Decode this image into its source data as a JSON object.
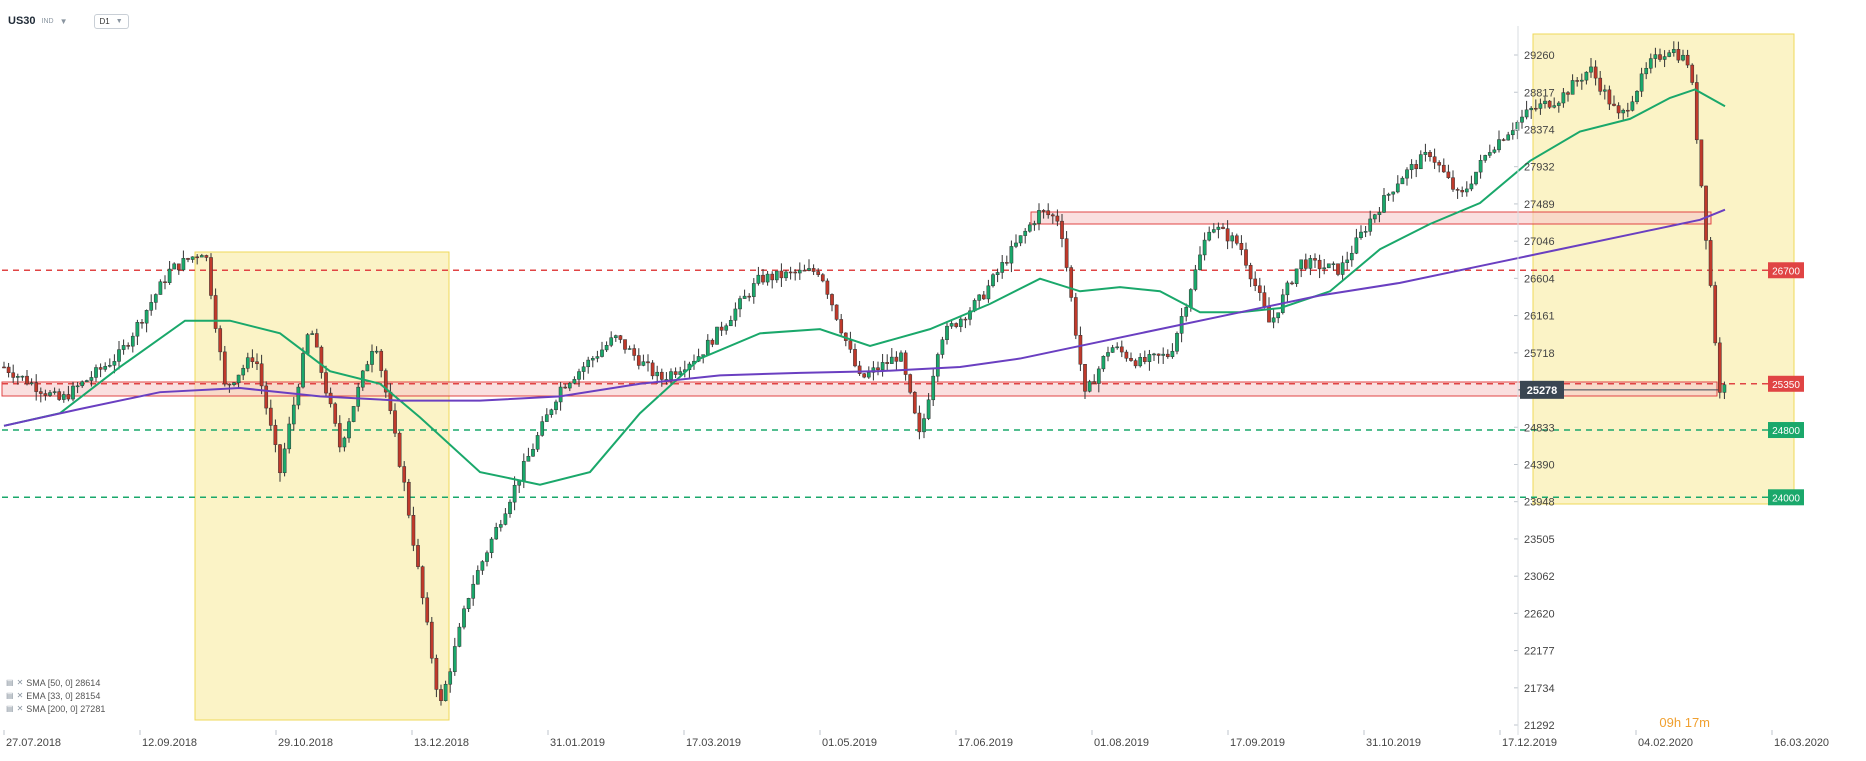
{
  "header": {
    "symbol": "US30",
    "market": "IND",
    "timeframe": "D1"
  },
  "timer": "09h 17m",
  "indicators": [
    {
      "label": "SMA [50, 0] 28614",
      "color": "#1aa86b"
    },
    {
      "label": "EMA [33, 0] 28154",
      "color": "#1aa86b"
    },
    {
      "label": "SMA [200, 0] 27281",
      "color": "#6a3fc1"
    }
  ],
  "chart_data": {
    "type": "candlestick",
    "x_tick_labels": [
      "27.07.2018",
      "12.09.2018",
      "29.10.2018",
      "13.12.2018",
      "31.01.2019",
      "17.03.2019",
      "01.05.2019",
      "17.06.2019",
      "01.08.2019",
      "17.09.2019",
      "31.10.2019",
      "17.12.2019",
      "04.02.2020",
      "16.03.2020"
    ],
    "y_tick_labels": [
      "29260",
      "28817",
      "28374",
      "27932",
      "27489",
      "27046",
      "26604",
      "26161",
      "25718",
      "24833",
      "24390",
      "23948",
      "23505",
      "23062",
      "22620",
      "22177",
      "21734",
      "21292"
    ],
    "ylim": [
      21292,
      29500
    ],
    "current_price": {
      "label": "25278",
      "value": 25278,
      "color": "#3a4652"
    },
    "levels": [
      {
        "label": "26700",
        "value": 26700,
        "style": "dashed",
        "color": "#e04444"
      },
      {
        "label": "25350",
        "value": 25350,
        "style": "dashed",
        "color": "#e04444"
      },
      {
        "label": "24800",
        "value": 24800,
        "style": "dashed",
        "color": "#1aa86b"
      },
      {
        "label": "24000",
        "value": 24000,
        "style": "dashed",
        "color": "#1aa86b"
      }
    ],
    "colors": {
      "up": "#1aa86b",
      "down": "#c0392b",
      "zone": "#fbf3c6",
      "zone_border": "#efd85a",
      "sma200": "#6a3fc1",
      "ema": "#1aa86b"
    }
  }
}
